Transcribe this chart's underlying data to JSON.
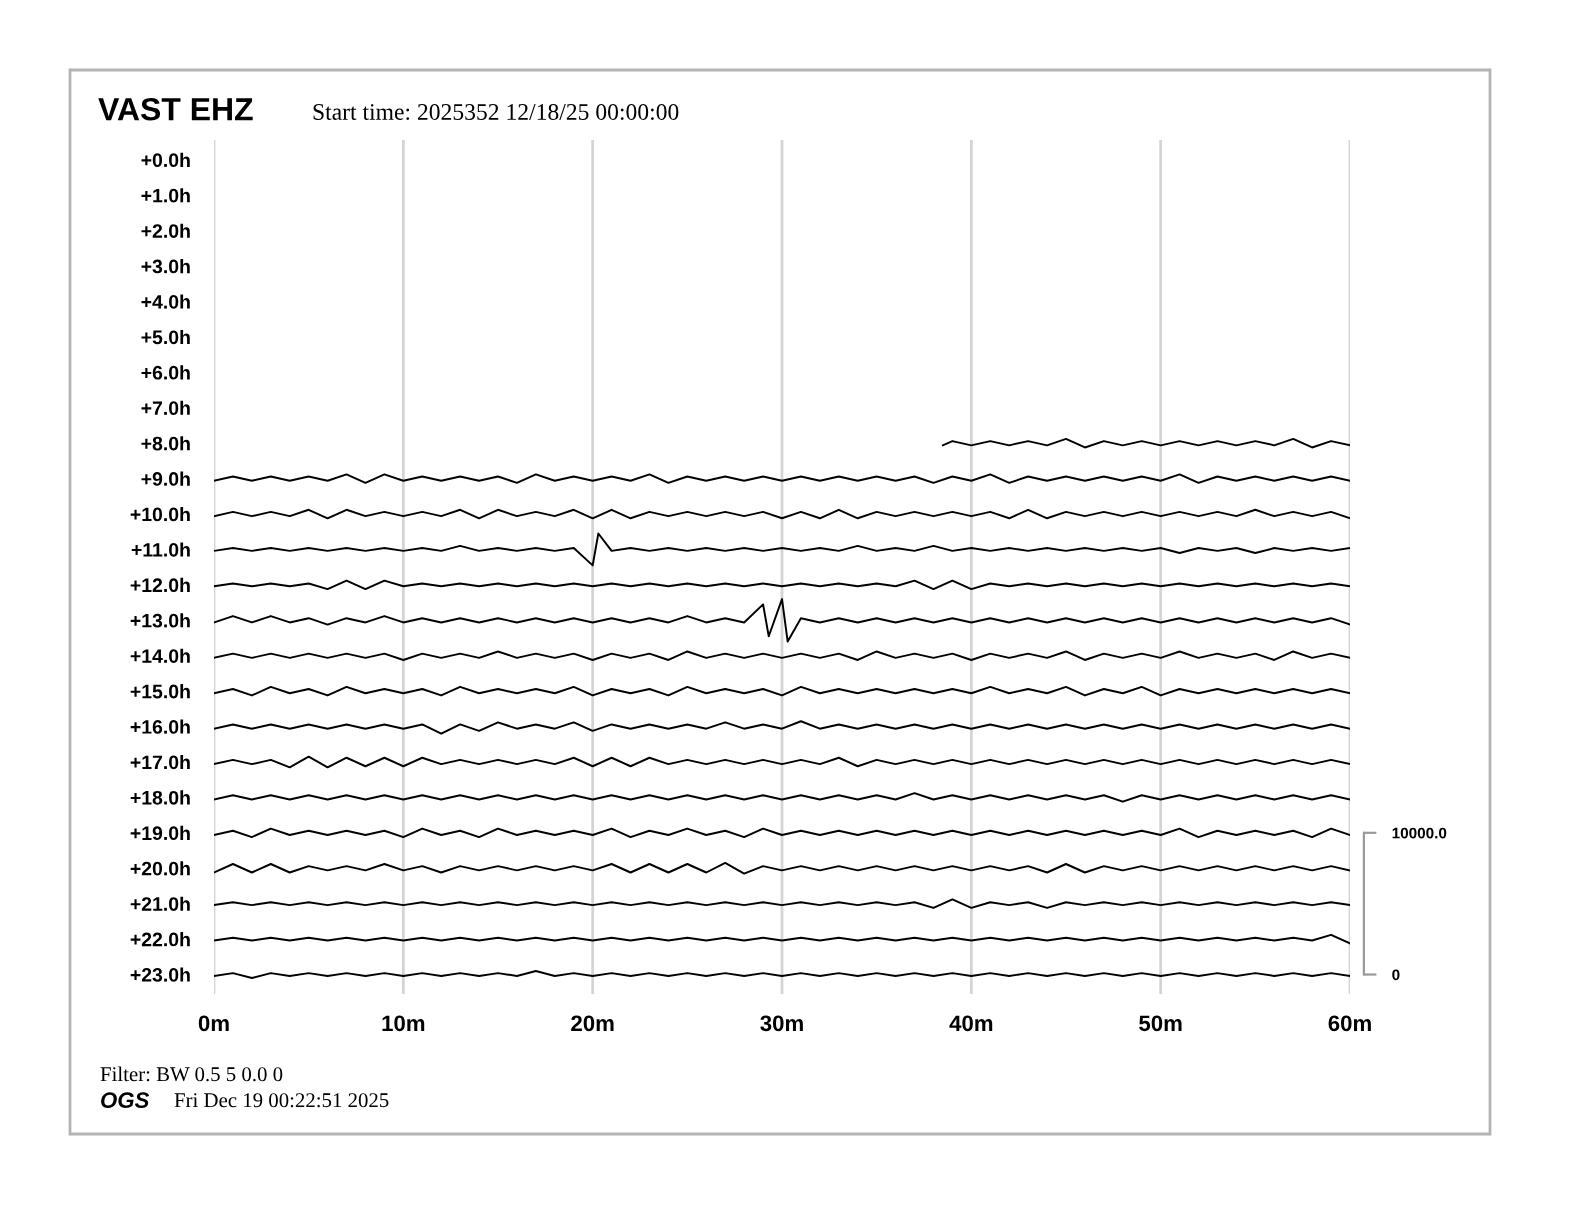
{
  "chart_data": {
    "type": "line",
    "title": "VAST EHZ",
    "subtitle": "Start time: 2025352 12/18/25 00:00:00",
    "annotations": [
      "Filter: BW 0.5 5 0.0 0",
      "OGS",
      "Fri Dec 19 00:22:51 2025"
    ],
    "grid": "x",
    "xlim": [
      0,
      60
    ],
    "xticks": [
      {
        "value": 0,
        "label": "0m"
      },
      {
        "value": 10,
        "label": "10m"
      },
      {
        "value": 20,
        "label": "20m"
      },
      {
        "value": 30,
        "label": "30m"
      },
      {
        "value": 40,
        "label": "40m"
      },
      {
        "value": 50,
        "label": "50m"
      },
      {
        "value": 60,
        "label": "60m"
      }
    ],
    "ylim": [
      23.55,
      -0.56
    ],
    "yticks": [
      {
        "value": 0,
        "label": "+0.0h"
      },
      {
        "value": 1,
        "label": "+1.0h"
      },
      {
        "value": 2,
        "label": "+2.0h"
      },
      {
        "value": 3,
        "label": "+3.0h"
      },
      {
        "value": 4,
        "label": "+4.0h"
      },
      {
        "value": 5,
        "label": "+5.0h"
      },
      {
        "value": 6,
        "label": "+6.0h"
      },
      {
        "value": 7,
        "label": "+7.0h"
      },
      {
        "value": 8,
        "label": "+8.0h"
      },
      {
        "value": 9,
        "label": "+9.0h"
      },
      {
        "value": 10,
        "label": "+10.0h"
      },
      {
        "value": 11,
        "label": "+11.0h"
      },
      {
        "value": 12,
        "label": "+12.0h"
      },
      {
        "value": 13,
        "label": "+13.0h"
      },
      {
        "value": 14,
        "label": "+14.0h"
      },
      {
        "value": 15,
        "label": "+15.0h"
      },
      {
        "value": 16,
        "label": "+16.0h"
      },
      {
        "value": 17,
        "label": "+17.0h"
      },
      {
        "value": 18,
        "label": "+18.0h"
      },
      {
        "value": 19,
        "label": "+19.0h"
      },
      {
        "value": 20,
        "label": "+20.0h"
      },
      {
        "value": 21,
        "label": "+21.0h"
      },
      {
        "value": 22,
        "label": "+22.0h"
      },
      {
        "value": 23,
        "label": "+23.0h"
      }
    ],
    "y2lim": [
      -1375,
      58900
    ],
    "y2ticks": [
      0,
      {
        "value": 10000,
        "label": "10000.0"
      }
    ],
    "x": [
      0,
      1,
      2,
      3,
      4,
      5,
      6,
      7,
      8,
      9,
      10,
      11,
      12,
      13,
      14,
      15,
      16,
      17,
      18,
      19,
      20,
      21,
      22,
      23,
      24,
      25,
      26,
      27,
      28,
      29,
      30,
      31,
      32,
      33,
      34,
      35,
      36,
      37,
      38,
      39,
      40,
      41,
      42,
      43,
      44,
      45,
      46,
      47,
      48,
      49,
      50,
      51,
      52,
      53,
      54,
      55,
      56,
      57,
      58,
      59,
      60
    ],
    "series": [
      {
        "color": "#000000",
        "x": [
          38.5,
          39,
          40,
          41,
          42,
          43,
          44,
          45,
          46,
          47,
          48,
          49,
          50,
          51,
          52,
          53,
          54,
          55,
          56,
          57,
          58,
          59,
          60
        ],
        "values": [
          8.06,
          7.94,
          8.06,
          7.94,
          8.06,
          7.94,
          8.06,
          7.88,
          8.12,
          7.94,
          8.06,
          7.94,
          8.06,
          7.94,
          8.06,
          7.94,
          8.06,
          7.94,
          8.06,
          7.88,
          8.12,
          7.94,
          8.06
        ]
      },
      {
        "color": "#000000",
        "values": [
          9.06,
          8.94,
          9.06,
          8.94,
          9.06,
          8.94,
          9.06,
          8.88,
          9.12,
          8.88,
          9.06,
          8.94,
          9.06,
          8.94,
          9.06,
          8.94,
          9.12,
          8.88,
          9.06,
          8.94,
          9.06,
          8.94,
          9.06,
          8.88,
          9.12,
          8.94,
          9.06,
          8.94,
          9.06,
          8.94,
          9.06,
          8.94,
          9.06,
          8.94,
          9.06,
          8.94,
          9.06,
          8.94,
          9.12,
          8.94,
          9.06,
          8.88,
          9.12,
          8.94,
          9.06,
          8.94,
          9.06,
          8.94,
          9.06,
          8.94,
          9.06,
          8.88,
          9.12,
          8.94,
          9.06,
          8.94,
          9.06,
          8.94,
          9.06,
          8.94,
          9.06
        ]
      },
      {
        "color": "#000000",
        "values": [
          10.06,
          9.94,
          10.06,
          9.94,
          10.06,
          9.88,
          10.12,
          9.88,
          10.06,
          9.94,
          10.06,
          9.94,
          10.06,
          9.88,
          10.12,
          9.88,
          10.06,
          9.94,
          10.06,
          9.88,
          10.12,
          9.88,
          10.12,
          9.94,
          10.06,
          9.94,
          10.06,
          9.94,
          10.06,
          9.94,
          10.12,
          9.94,
          10.12,
          9.88,
          10.12,
          9.94,
          10.06,
          9.94,
          10.06,
          9.94,
          10.06,
          9.94,
          10.12,
          9.88,
          10.12,
          9.94,
          10.06,
          9.94,
          10.06,
          9.94,
          10.06,
          9.94,
          10.06,
          9.94,
          10.06,
          9.88,
          10.06,
          9.94,
          10.06,
          9.94,
          10.12
        ]
      },
      {
        "color": "#000000",
        "x": [
          0,
          1,
          2,
          3,
          4,
          5,
          6,
          7,
          8,
          9,
          10,
          11,
          12,
          13,
          14,
          15,
          16,
          17,
          18,
          19,
          20,
          20.3,
          21,
          22,
          23,
          24,
          25,
          26,
          27,
          28,
          29,
          30,
          31,
          32,
          33,
          34,
          35,
          36,
          37,
          38,
          39,
          40,
          41,
          42,
          43,
          44,
          45,
          46,
          47,
          48,
          49,
          50,
          51,
          52,
          53,
          54,
          55,
          56,
          57,
          58,
          59,
          60
        ],
        "values": [
          11.04,
          10.96,
          11.04,
          10.96,
          11.04,
          10.96,
          11.04,
          10.96,
          11.04,
          10.96,
          11.04,
          10.96,
          11.04,
          10.9,
          11.04,
          10.96,
          11.04,
          10.96,
          11.04,
          10.96,
          11.45,
          10.55,
          11.04,
          10.96,
          11.04,
          10.96,
          11.04,
          10.96,
          11.04,
          10.96,
          11.04,
          10.96,
          11.04,
          10.96,
          11.04,
          10.9,
          11.04,
          10.96,
          11.04,
          10.9,
          11.04,
          10.96,
          11.04,
          10.96,
          11.04,
          10.96,
          11.04,
          10.96,
          11.04,
          10.96,
          11.04,
          10.96,
          11.1,
          10.96,
          11.04,
          10.96,
          11.1,
          10.96,
          11.04,
          10.96,
          11.04,
          10.96
        ]
      },
      {
        "color": "#000000",
        "values": [
          12.04,
          11.96,
          12.04,
          11.96,
          12.04,
          11.96,
          12.12,
          11.88,
          12.12,
          11.88,
          12.04,
          11.96,
          12.04,
          11.96,
          12.04,
          11.96,
          12.04,
          11.96,
          12.04,
          11.96,
          12.04,
          11.96,
          12.04,
          11.96,
          12.04,
          11.96,
          12.04,
          11.96,
          12.04,
          11.96,
          12.04,
          11.96,
          12.04,
          11.96,
          12.04,
          11.96,
          12.04,
          11.88,
          12.12,
          11.88,
          12.12,
          11.96,
          12.04,
          11.96,
          12.04,
          11.96,
          12.04,
          11.96,
          12.04,
          11.96,
          12.04,
          11.96,
          12.04,
          11.96,
          12.04,
          11.96,
          12.04,
          11.96,
          12.04,
          11.96,
          12.04
        ]
      },
      {
        "color": "#000000",
        "x": [
          0,
          1,
          2,
          3,
          4,
          5,
          6,
          7,
          8,
          9,
          10,
          11,
          12,
          13,
          14,
          15,
          16,
          17,
          18,
          19,
          20,
          21,
          22,
          23,
          24,
          25,
          26,
          27,
          28,
          29,
          29.3,
          30,
          30.3,
          31,
          32,
          33,
          34,
          35,
          36,
          37,
          38,
          39,
          40,
          41,
          42,
          43,
          44,
          45,
          46,
          47,
          48,
          49,
          50,
          51,
          52,
          53,
          54,
          55,
          56,
          57,
          58,
          59,
          60
        ],
        "values": [
          13.06,
          12.88,
          13.06,
          12.88,
          13.06,
          12.94,
          13.12,
          12.94,
          13.06,
          12.88,
          13.06,
          12.94,
          13.06,
          12.94,
          13.06,
          12.94,
          13.06,
          12.94,
          13.06,
          12.94,
          13.06,
          12.94,
          13.06,
          12.94,
          13.06,
          12.88,
          13.06,
          12.94,
          13.06,
          12.55,
          13.45,
          12.4,
          13.6,
          12.94,
          13.06,
          12.94,
          13.06,
          12.94,
          13.06,
          12.94,
          13.06,
          12.94,
          13.06,
          12.94,
          13.06,
          12.94,
          13.06,
          12.94,
          13.06,
          12.94,
          13.06,
          12.94,
          13.06,
          12.94,
          13.06,
          12.94,
          13.06,
          12.94,
          13.06,
          12.94,
          13.06,
          12.94,
          13.12
        ]
      },
      {
        "color": "#000000",
        "values": [
          14.06,
          13.94,
          14.06,
          13.94,
          14.06,
          13.94,
          14.06,
          13.94,
          14.06,
          13.94,
          14.12,
          13.94,
          14.06,
          13.94,
          14.06,
          13.88,
          14.06,
          13.94,
          14.06,
          13.94,
          14.12,
          13.94,
          14.06,
          13.94,
          14.12,
          13.88,
          14.06,
          13.94,
          14.06,
          13.94,
          14.06,
          13.94,
          14.06,
          13.94,
          14.12,
          13.88,
          14.06,
          13.94,
          14.06,
          13.94,
          14.12,
          13.94,
          14.06,
          13.94,
          14.06,
          13.88,
          14.12,
          13.94,
          14.06,
          13.94,
          14.06,
          13.88,
          14.06,
          13.94,
          14.06,
          13.94,
          14.12,
          13.88,
          14.06,
          13.94,
          14.06
        ]
      },
      {
        "color": "#000000",
        "values": [
          15.06,
          14.94,
          15.12,
          14.88,
          15.06,
          14.94,
          15.12,
          14.88,
          15.06,
          14.94,
          15.06,
          14.94,
          15.12,
          14.88,
          15.06,
          14.94,
          15.06,
          14.94,
          15.06,
          14.88,
          15.12,
          14.94,
          15.06,
          14.94,
          15.12,
          14.88,
          15.06,
          14.94,
          15.06,
          14.94,
          15.12,
          14.88,
          15.06,
          14.94,
          15.06,
          14.94,
          15.06,
          14.94,
          15.06,
          14.94,
          15.06,
          14.88,
          15.06,
          14.94,
          15.06,
          14.88,
          15.12,
          14.94,
          15.06,
          14.88,
          15.12,
          14.94,
          15.06,
          14.94,
          15.06,
          14.94,
          15.06,
          14.94,
          15.06,
          14.94,
          15.06
        ]
      },
      {
        "color": "#000000",
        "values": [
          16.06,
          15.94,
          16.06,
          15.94,
          16.06,
          15.94,
          16.06,
          15.94,
          16.06,
          15.94,
          16.06,
          15.94,
          16.2,
          15.94,
          16.12,
          15.88,
          16.06,
          15.94,
          16.06,
          15.88,
          16.12,
          15.94,
          16.06,
          15.94,
          16.06,
          15.94,
          16.06,
          15.88,
          16.06,
          15.94,
          16.06,
          15.85,
          16.06,
          15.94,
          16.06,
          15.94,
          16.06,
          15.94,
          16.06,
          15.94,
          16.06,
          15.94,
          16.06,
          15.94,
          16.06,
          15.94,
          16.06,
          15.94,
          16.06,
          15.94,
          16.06,
          15.94,
          16.06,
          15.94,
          16.06,
          15.94,
          16.06,
          15.94,
          16.06,
          15.94,
          16.06
        ]
      },
      {
        "color": "#000000",
        "values": [
          17.06,
          16.94,
          17.06,
          16.94,
          17.15,
          16.85,
          17.15,
          16.88,
          17.12,
          16.88,
          17.12,
          16.88,
          17.06,
          16.94,
          17.06,
          16.94,
          17.06,
          16.94,
          17.06,
          16.88,
          17.12,
          16.88,
          17.12,
          16.88,
          17.06,
          16.94,
          17.06,
          16.94,
          17.06,
          16.94,
          17.06,
          16.94,
          17.06,
          16.88,
          17.12,
          16.94,
          17.06,
          16.94,
          17.06,
          16.94,
          17.06,
          16.94,
          17.06,
          16.94,
          17.06,
          16.94,
          17.06,
          16.94,
          17.06,
          16.94,
          17.06,
          16.94,
          17.06,
          16.94,
          17.06,
          16.94,
          17.06,
          16.94,
          17.06,
          16.94,
          17.06
        ]
      },
      {
        "color": "#000000",
        "values": [
          18.06,
          17.94,
          18.06,
          17.94,
          18.06,
          17.94,
          18.06,
          17.94,
          18.06,
          17.94,
          18.06,
          17.94,
          18.06,
          17.94,
          18.06,
          17.94,
          18.06,
          17.94,
          18.06,
          17.94,
          18.06,
          17.94,
          18.06,
          17.94,
          18.06,
          17.94,
          18.06,
          17.94,
          18.06,
          17.94,
          18.06,
          17.94,
          18.06,
          17.94,
          18.06,
          17.94,
          18.06,
          17.88,
          18.06,
          17.94,
          18.06,
          17.94,
          18.06,
          17.94,
          18.06,
          17.94,
          18.06,
          17.94,
          18.12,
          17.94,
          18.06,
          17.94,
          18.06,
          17.94,
          18.06,
          17.94,
          18.06,
          17.94,
          18.06,
          17.94,
          18.06
        ]
      },
      {
        "color": "#000000",
        "values": [
          19.06,
          18.94,
          19.12,
          18.88,
          19.06,
          18.94,
          19.06,
          18.94,
          19.06,
          18.94,
          19.12,
          18.88,
          19.06,
          18.94,
          19.12,
          18.88,
          19.06,
          18.94,
          19.06,
          18.94,
          19.06,
          18.88,
          19.12,
          18.94,
          19.06,
          18.88,
          19.06,
          18.94,
          19.12,
          18.88,
          19.06,
          18.94,
          19.06,
          18.94,
          19.06,
          18.94,
          19.06,
          18.94,
          19.06,
          18.94,
          19.06,
          18.94,
          19.06,
          18.94,
          19.06,
          18.94,
          19.06,
          18.94,
          19.06,
          18.94,
          19.06,
          18.88,
          19.12,
          18.94,
          19.06,
          18.94,
          19.06,
          18.94,
          19.12,
          18.88,
          19.06
        ]
      },
      {
        "color": "#000000",
        "values": [
          20.12,
          19.88,
          20.12,
          19.88,
          20.12,
          19.94,
          20.06,
          19.94,
          20.06,
          19.88,
          20.06,
          19.94,
          20.12,
          19.94,
          20.06,
          19.94,
          20.06,
          19.94,
          20.06,
          19.94,
          20.06,
          19.88,
          20.12,
          19.88,
          20.12,
          19.88,
          20.12,
          19.85,
          20.15,
          19.94,
          20.06,
          19.94,
          20.06,
          19.94,
          20.06,
          19.94,
          20.06,
          19.94,
          20.06,
          19.94,
          20.06,
          19.94,
          20.06,
          19.94,
          20.12,
          19.88,
          20.12,
          19.94,
          20.06,
          19.94,
          20.06,
          19.94,
          20.06,
          19.94,
          20.06,
          19.94,
          20.06,
          19.94,
          20.06,
          19.94,
          20.06
        ]
      },
      {
        "color": "#000000",
        "values": [
          21.04,
          20.96,
          21.04,
          20.96,
          21.04,
          20.96,
          21.04,
          20.96,
          21.04,
          20.96,
          21.04,
          20.96,
          21.04,
          20.96,
          21.04,
          20.96,
          21.04,
          20.96,
          21.04,
          20.96,
          21.04,
          20.96,
          21.04,
          20.96,
          21.04,
          20.96,
          21.04,
          20.96,
          21.04,
          20.96,
          21.04,
          20.96,
          21.04,
          20.96,
          21.04,
          20.96,
          21.04,
          20.96,
          21.12,
          20.88,
          21.12,
          20.96,
          21.04,
          20.96,
          21.12,
          20.96,
          21.04,
          20.96,
          21.04,
          20.96,
          21.04,
          20.96,
          21.04,
          20.96,
          21.04,
          20.96,
          21.04,
          20.96,
          21.04,
          20.96,
          21.04
        ]
      },
      {
        "color": "#000000",
        "values": [
          22.04,
          21.96,
          22.04,
          21.96,
          22.04,
          21.96,
          22.04,
          21.96,
          22.04,
          21.96,
          22.04,
          21.96,
          22.04,
          21.96,
          22.04,
          21.96,
          22.04,
          21.96,
          22.04,
          21.96,
          22.04,
          21.96,
          22.04,
          21.96,
          22.04,
          21.96,
          22.04,
          21.96,
          22.04,
          21.96,
          22.04,
          21.96,
          22.04,
          21.96,
          22.04,
          21.96,
          22.04,
          21.96,
          22.04,
          21.96,
          22.04,
          21.96,
          22.04,
          21.96,
          22.04,
          21.96,
          22.04,
          21.96,
          22.04,
          21.96,
          22.04,
          21.96,
          22.04,
          21.96,
          22.04,
          21.96,
          22.04,
          21.96,
          22.04,
          21.88,
          22.12
        ]
      },
      {
        "color": "#000000",
        "values": [
          23.04,
          22.96,
          23.1,
          22.96,
          23.04,
          22.96,
          23.04,
          22.96,
          23.04,
          22.96,
          23.04,
          22.96,
          23.04,
          22.96,
          23.04,
          22.96,
          23.04,
          22.9,
          23.04,
          22.96,
          23.04,
          22.96,
          23.04,
          22.96,
          23.04,
          22.96,
          23.04,
          22.96,
          23.04,
          22.96,
          23.04,
          22.96,
          23.04,
          22.96,
          23.04,
          22.96,
          23.04,
          22.96,
          23.04,
          22.96,
          23.04,
          22.96,
          23.04,
          22.96,
          23.04,
          22.96,
          23.04,
          22.96,
          23.04,
          22.96,
          23.04,
          22.96,
          23.04,
          22.96,
          23.04,
          22.96,
          23.04,
          22.96,
          23.04,
          22.96,
          23.04
        ]
      }
    ]
  }
}
